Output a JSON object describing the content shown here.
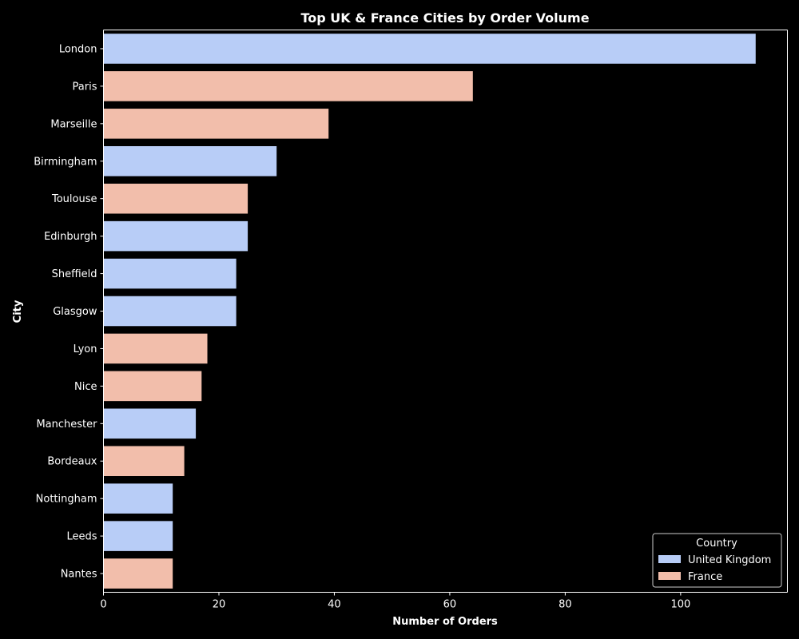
{
  "chart_data": {
    "type": "bar",
    "orientation": "horizontal",
    "title": "Top UK & France Cities by Order Volume",
    "xlabel": "Number of Orders",
    "ylabel": "City",
    "xlim": [
      0,
      118.5
    ],
    "xticks": [
      0,
      20,
      40,
      60,
      80,
      100
    ],
    "grid": false,
    "categories": [
      "London",
      "Paris",
      "Marseille",
      "Birmingham",
      "Toulouse",
      "Edinburgh",
      "Sheffield",
      "Glasgow",
      "Lyon",
      "Nice",
      "Manchester",
      "Bordeaux",
      "Nottingham",
      "Leeds",
      "Nantes"
    ],
    "values": [
      113,
      64,
      39,
      30,
      25,
      25,
      23,
      23,
      18,
      17,
      16,
      14,
      12,
      12,
      12
    ],
    "groups": [
      "United Kingdom",
      "France",
      "France",
      "United Kingdom",
      "France",
      "United Kingdom",
      "United Kingdom",
      "United Kingdom",
      "France",
      "France",
      "United Kingdom",
      "France",
      "United Kingdom",
      "United Kingdom",
      "France"
    ],
    "legend": {
      "title": "Country",
      "placement": "bottom-right",
      "entries": [
        {
          "name": "United Kingdom",
          "color": "#b8cdf7"
        },
        {
          "name": "France",
          "color": "#f2beab"
        }
      ]
    }
  },
  "colors": {
    "background": "#000000",
    "foreground": "#ffffff"
  }
}
